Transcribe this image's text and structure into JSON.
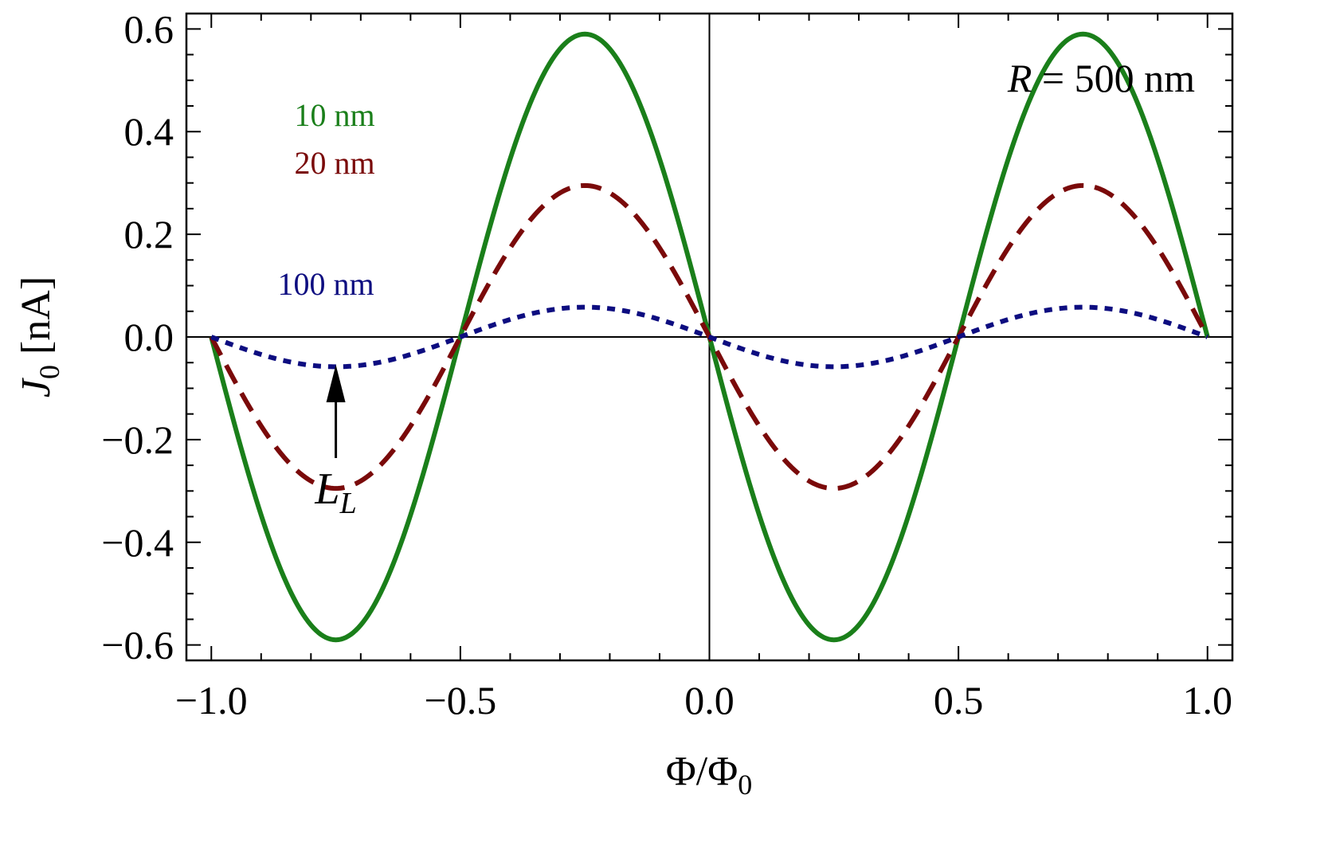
{
  "chart_data": {
    "type": "line",
    "title": "",
    "xlabel": {
      "main": "Φ/Φ",
      "sub": "0"
    },
    "ylabel": {
      "main": "J",
      "sub": "0",
      "unit": " [nA]"
    },
    "xlim": [
      -1.05,
      1.05
    ],
    "ylim": [
      -0.63,
      0.63
    ],
    "xticks": [
      -1.0,
      -0.5,
      0.0,
      0.5,
      1.0
    ],
    "xtick_labels": [
      "−1.0",
      "−0.5",
      "0.0",
      "0.5",
      "1.0"
    ],
    "yticks": [
      0.6,
      0.4,
      0.2,
      0.0,
      -0.2,
      -0.4,
      -0.6
    ],
    "ytick_labels": [
      "0.6",
      "0.4",
      "0.2",
      "0.0",
      "−0.2",
      "−0.4",
      "−0.6"
    ],
    "series": [
      {
        "name": "10 nm",
        "function": "-A*sin(2*pi*x)",
        "amplitude": 0.59,
        "x_range": [
          -1.0,
          1.0
        ],
        "color": "#1a7f1a",
        "style": "solid"
      },
      {
        "name": "20 nm",
        "function": "-A*sin(2*pi*x)",
        "amplitude": 0.295,
        "x_range": [
          -1.0,
          1.0
        ],
        "color": "#7a0a0a",
        "style": "dashed"
      },
      {
        "name": "100 nm",
        "function": "-A*sin(2*pi*x)",
        "amplitude": 0.058,
        "x_range": [
          -1.0,
          1.0
        ],
        "color": "#0d0d80",
        "style": "dotted"
      }
    ],
    "series_labels": [
      {
        "text": "10 nm",
        "color": "#1a7f1a"
      },
      {
        "text": "20 nm",
        "color": "#7a0a0a"
      },
      {
        "text": "100 nm",
        "color": "#0d0d80"
      }
    ],
    "annotations": {
      "parameter": {
        "symbol": "R",
        "rest": " = 500 nm"
      },
      "arrow_label": {
        "main": "L",
        "sub": "L"
      },
      "arrow_x": -0.75
    }
  }
}
